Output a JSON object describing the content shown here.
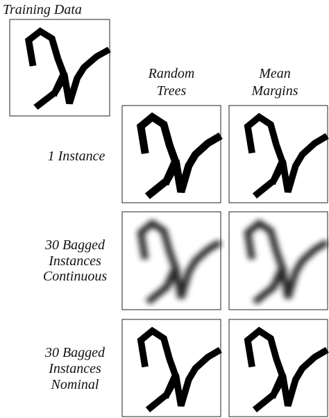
{
  "figure": {
    "title": "Training Data",
    "columns": [
      [
        "Random",
        "Trees"
      ],
      [
        "Mean",
        "Margins"
      ]
    ],
    "rows": [
      [
        "1 Instance"
      ],
      [
        "30 Bagged",
        "Instances",
        "Continuous"
      ],
      [
        "30 Bagged",
        "Instances",
        "Nominal"
      ]
    ]
  }
}
